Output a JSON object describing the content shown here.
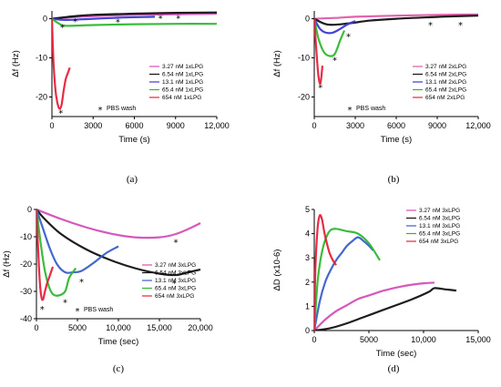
{
  "chart_data": [
    {
      "type": "line",
      "panel_label": "(a)",
      "xlabel": "Time (s)",
      "ylabel": "Δf (Hz)",
      "xlim": [
        0,
        12000
      ],
      "ylim": [
        -25,
        2
      ],
      "xticks": [
        0,
        3000,
        6000,
        9000,
        12000
      ],
      "xtick_labels": [
        "0",
        "3000",
        "6000",
        "9000",
        "12,000"
      ],
      "yticks": [
        0,
        -10,
        -20
      ],
      "ytick_labels": [
        "0",
        "-10",
        "-20"
      ],
      "legend_position": "right",
      "annotation": "PBS wash",
      "series": [
        {
          "name": "3.27 nM 1xLPG",
          "color": "#d44fb8",
          "x": [
            0,
            2000,
            4000,
            6000,
            8000,
            10000,
            12000
          ],
          "y": [
            0,
            0.5,
            0.8,
            1.0,
            1.1,
            1.2,
            1.3
          ]
        },
        {
          "name": "6.54 nM 1xLPG",
          "color": "#111111",
          "x": [
            0,
            1500,
            3000,
            6000,
            9000,
            12000
          ],
          "y": [
            0,
            0.6,
            1.0,
            1.3,
            1.5,
            1.6
          ]
        },
        {
          "name": "13.1 nM 1xLPG",
          "color": "#3a3ad0",
          "x": [
            0,
            1000,
            3000,
            5000,
            7500
          ],
          "y": [
            0,
            -0.3,
            0.0,
            0.3,
            0.5
          ]
        },
        {
          "name": "65.4 nM 1xLPG",
          "color": "#2fb832",
          "x": [
            0,
            500,
            1000,
            3000,
            6000,
            9000,
            12000
          ],
          "y": [
            0,
            -1.2,
            -1.8,
            -1.6,
            -1.4,
            -1.3,
            -1.3
          ]
        },
        {
          "name": "654  nM 1xLPG",
          "color": "#e8203a",
          "x": [
            0,
            100,
            250,
            400,
            550,
            700,
            850,
            1000,
            1150,
            1300
          ],
          "y": [
            0,
            -10,
            -18,
            -21.5,
            -23,
            -22,
            -18.5,
            -15.5,
            -14,
            -12.5
          ]
        }
      ],
      "wash_markers": [
        [
          650,
          -23
        ],
        [
          750,
          -1.2
        ],
        [
          1700,
          0.4
        ],
        [
          4800,
          0.3
        ],
        [
          7900,
          1.2
        ],
        [
          9200,
          1.2
        ]
      ]
    },
    {
      "type": "line",
      "panel_label": "(b)",
      "xlabel": "Time (s)",
      "ylabel": "Δf (Hz)",
      "xlim": [
        0,
        12000
      ],
      "ylim": [
        -25,
        2
      ],
      "xticks": [
        0,
        3000,
        6000,
        9000,
        12000
      ],
      "xtick_labels": [
        "0",
        "3000",
        "6000",
        "9000",
        "12,000"
      ],
      "yticks": [
        0,
        -10,
        -20
      ],
      "ytick_labels": [
        "0",
        "-10",
        "-20"
      ],
      "legend_position": "right",
      "annotation": "PBS wash",
      "series": [
        {
          "name": "3.27 nM 2xLPG",
          "color": "#e05aa8",
          "x": [
            0,
            1500,
            3000,
            6000,
            9000,
            12000
          ],
          "y": [
            0,
            0.2,
            0.5,
            0.8,
            1.0,
            1.1
          ]
        },
        {
          "name": "6.54 nM 2xLPG",
          "color": "#111111",
          "x": [
            0,
            1000,
            2500,
            4000,
            6000,
            8500,
            10000,
            12000
          ],
          "y": [
            0,
            -1.5,
            -1.2,
            -0.5,
            0.0,
            0.4,
            0.6,
            0.8
          ]
        },
        {
          "name": "13.1 nM 2xLPG",
          "color": "#3a3ad0",
          "x": [
            0,
            400,
            800,
            1300,
            1800,
            2400,
            3000
          ],
          "y": [
            0,
            -2.5,
            -3.5,
            -3.6,
            -2.8,
            -1.5,
            -0.6
          ]
        },
        {
          "name": "65.4 nM 2xLPG",
          "color": "#2fb832",
          "x": [
            0,
            300,
            700,
            1100,
            1500,
            1900,
            2200
          ],
          "y": [
            0,
            -5,
            -8.5,
            -9.5,
            -9.0,
            -5.5,
            -3.0
          ]
        },
        {
          "name": "654  nM 2xLPG",
          "color": "#e8203a",
          "x": [
            0,
            150,
            300,
            450,
            600
          ],
          "y": [
            0,
            -8,
            -14.5,
            -16.5,
            -12
          ]
        }
      ],
      "wash_markers": [
        [
          450,
          -16.5
        ],
        [
          1500,
          -9.5
        ],
        [
          2500,
          -3.5
        ],
        [
          8500,
          -0.6
        ],
        [
          10700,
          -0.6
        ]
      ]
    },
    {
      "type": "line",
      "panel_label": "(c)",
      "xlabel": "Time (sec)",
      "ylabel": "Δf (Hz)",
      "xlim": [
        0,
        20000
      ],
      "ylim": [
        -40,
        0
      ],
      "xticks": [
        0,
        5000,
        10000,
        15000,
        20000
      ],
      "xtick_labels": [
        "0",
        "5000",
        "10,000",
        "15,000",
        "20,000"
      ],
      "yticks": [
        0,
        -10,
        -20,
        -30,
        -40
      ],
      "ytick_labels": [
        "0",
        "-10",
        "-20",
        "-30",
        "-40"
      ],
      "legend_position": "bottom-right",
      "annotation": "PBS wash",
      "series": [
        {
          "name": "3.27 nM 3xLPG",
          "color": "#d44fb8",
          "x": [
            0,
            3000,
            6000,
            9000,
            12000,
            15000,
            17000,
            19000,
            20000
          ],
          "y": [
            0,
            -3.5,
            -6.5,
            -8.8,
            -10.2,
            -10.2,
            -9.0,
            -6.5,
            -5.0
          ]
        },
        {
          "name": "6.54 nM 3xLPG",
          "color": "#111111",
          "x": [
            0,
            1000,
            3000,
            6000,
            9000,
            12000,
            15000,
            17000,
            18500,
            20000
          ],
          "y": [
            0,
            -3.5,
            -9,
            -14.5,
            -18.5,
            -21.5,
            -23.5,
            -24.0,
            -23.0,
            -22.0
          ]
        },
        {
          "name": "13.1 nM 3xLPG",
          "color": "#3a5fc8",
          "x": [
            0,
            800,
            1600,
            2500,
            3500,
            4500,
            5500,
            7000,
            8500,
            10000
          ],
          "y": [
            0,
            -7,
            -14,
            -20,
            -23,
            -23,
            -22.5,
            -19.5,
            -16,
            -13.5
          ]
        },
        {
          "name": "65.4 nM 3xLPG",
          "color": "#2fb832",
          "x": [
            0,
            500,
            1000,
            1500,
            2000,
            2700,
            3500,
            4000,
            4800
          ],
          "y": [
            0,
            -12,
            -22,
            -28,
            -31,
            -31.5,
            -30,
            -25,
            -21.5
          ]
        },
        {
          "name": "654  nM 3xLPG",
          "color": "#e8203a",
          "x": [
            0,
            200,
            400,
            600,
            800,
            1000,
            1300,
            1600,
            2000
          ],
          "y": [
            0,
            -14,
            -26,
            -32,
            -33,
            -30.5,
            -27,
            -24.5,
            -21
          ]
        }
      ],
      "wash_markers": [
        [
          700,
          -35
        ],
        [
          3500,
          -32.5
        ],
        [
          5500,
          -25
        ],
        [
          17000,
          -10.5
        ],
        [
          16800,
          -25.5
        ]
      ]
    },
    {
      "type": "line",
      "panel_label": "(d)",
      "xlabel": "Time (sec)",
      "ylabel": "ΔD (x10-6)",
      "xlim": [
        0,
        15000
      ],
      "ylim": [
        0,
        5
      ],
      "xticks": [
        0,
        5000,
        10000,
        15000
      ],
      "xtick_labels": [
        "0",
        "5000",
        "10,000",
        "15,000"
      ],
      "yticks": [
        0,
        1,
        2,
        3,
        4,
        5
      ],
      "ytick_labels": [
        "0",
        "1",
        "2",
        "3",
        "4",
        "5"
      ],
      "legend_position": "top-right",
      "series": [
        {
          "name": "3.27 nM 3xLPG",
          "color": "#d44fb8",
          "x": [
            0,
            1000,
            2000,
            3000,
            4000,
            5000,
            6000,
            7000,
            8000,
            9000,
            10000,
            11000
          ],
          "y": [
            0,
            0.45,
            0.8,
            1.05,
            1.3,
            1.45,
            1.6,
            1.72,
            1.82,
            1.9,
            1.95,
            1.98
          ]
        },
        {
          "name": "6.54 nM 3xLPG",
          "color": "#111111",
          "x": [
            0,
            1500,
            3000,
            4500,
            6000,
            7500,
            9000,
            10500,
            11000,
            12000,
            13000
          ],
          "y": [
            0,
            0.1,
            0.3,
            0.55,
            0.8,
            1.05,
            1.3,
            1.6,
            1.75,
            1.7,
            1.65
          ]
        },
        {
          "name": "13.1 nM 3xLPG",
          "color": "#3a5fc8",
          "x": [
            0,
            500,
            1000,
            1500,
            2000,
            2500,
            3000,
            3500,
            4000,
            4500,
            5000,
            5400
          ],
          "y": [
            0,
            1.2,
            2.0,
            2.5,
            2.9,
            3.2,
            3.5,
            3.7,
            3.85,
            3.7,
            3.5,
            3.3
          ]
        },
        {
          "name": "65.4 nM 3xLPG",
          "color": "#2fb832",
          "x": [
            0,
            300,
            600,
            900,
            1200,
            1500,
            2000,
            3000,
            4000,
            5000,
            6000
          ],
          "y": [
            0,
            2.0,
            3.0,
            3.6,
            3.95,
            4.15,
            4.2,
            4.1,
            4.0,
            3.6,
            2.9
          ]
        },
        {
          "name": "654  nM 3xLPG",
          "color": "#e8203a",
          "x": [
            0,
            100,
            300,
            500,
            700,
            900,
            1100,
            1400,
            1700,
            2000
          ],
          "y": [
            0,
            2.5,
            4.2,
            4.75,
            4.6,
            4.1,
            3.7,
            3.2,
            2.9,
            2.7
          ]
        }
      ]
    }
  ],
  "legend_wash_label": "PBS wash"
}
